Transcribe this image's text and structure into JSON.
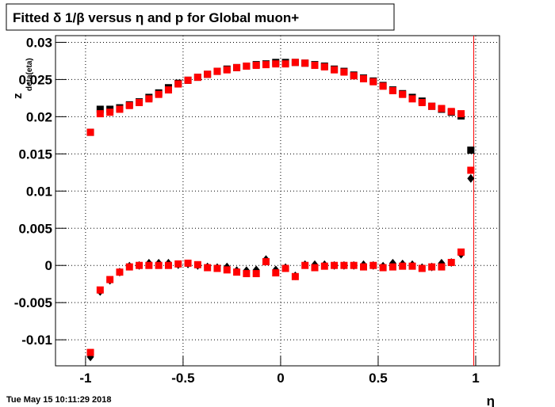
{
  "chart_data": {
    "type": "scatter",
    "title": "Fitted δ 1/β versus η and p for Global muon+",
    "x_label": "η",
    "y_label": "z",
    "y_label_sub": "deta(eta)",
    "timestamp": "Tue May 15 10:11:29 2018",
    "x": [
      -0.975,
      -0.925,
      -0.875,
      -0.825,
      -0.775,
      -0.725,
      -0.675,
      -0.625,
      -0.575,
      -0.525,
      -0.475,
      -0.425,
      -0.375,
      -0.325,
      -0.275,
      -0.225,
      -0.175,
      -0.125,
      -0.075,
      -0.025,
      0.025,
      0.075,
      0.125,
      0.175,
      0.225,
      0.275,
      0.325,
      0.375,
      0.425,
      0.475,
      0.525,
      0.575,
      0.625,
      0.675,
      0.725,
      0.775,
      0.825,
      0.875,
      0.925,
      0.975
    ],
    "series": [
      {
        "color": "#000000",
        "marker": "square",
        "values": [
          0.0179,
          0.021,
          0.021,
          0.0212,
          0.0216,
          0.022,
          0.0226,
          0.0232,
          0.0239,
          0.0245,
          0.0249,
          0.0253,
          0.0257,
          0.0261,
          0.0264,
          0.0266,
          0.0268,
          0.027,
          0.0271,
          0.0273,
          0.0273,
          0.0273,
          0.0272,
          0.027,
          0.0268,
          0.0264,
          0.0261,
          0.0256,
          0.0252,
          0.0248,
          0.0242,
          0.0236,
          0.0231,
          0.0226,
          0.0221,
          0.0214,
          0.021,
          0.0206,
          0.0201,
          0.0155
        ]
      },
      {
        "color": "#ff0000",
        "marker": "square",
        "values": [
          0.0179,
          0.0204,
          0.0206,
          0.021,
          0.0215,
          0.0219,
          0.0224,
          0.023,
          0.0236,
          0.0244,
          0.0249,
          0.0253,
          0.0257,
          0.0261,
          0.0263,
          0.0266,
          0.0268,
          0.0269,
          0.027,
          0.0271,
          0.0271,
          0.0273,
          0.0272,
          0.0269,
          0.0267,
          0.0263,
          0.026,
          0.0255,
          0.0251,
          0.0247,
          0.0241,
          0.0235,
          0.023,
          0.0224,
          0.0219,
          0.0214,
          0.0211,
          0.0207,
          0.0204,
          0.0128
        ]
      },
      {
        "color": "#000000",
        "marker": "diamond",
        "values": [
          -0.0123,
          -0.0035,
          -0.002,
          -0.0009,
          -0.0001,
          0.0,
          0.0003,
          0.0003,
          0.0003,
          0.0001,
          0.0002,
          0.0,
          -0.0002,
          -0.0003,
          -0.0002,
          -0.0007,
          -0.0007,
          -0.0006,
          0.0008,
          -0.0006,
          -0.0003,
          -0.0014,
          0.0001,
          0.0001,
          0.0001,
          0.0,
          0.0,
          0.0,
          0.0001,
          0.0,
          -0.0001,
          0.0003,
          0.0002,
          0.0001,
          -0.0003,
          -0.0002,
          0.0003,
          0.0004,
          0.0015,
          0.0117
        ]
      },
      {
        "color": "#ff0000",
        "marker": "square",
        "values": [
          -0.0117,
          -0.0033,
          -0.0019,
          -0.0009,
          -0.0002,
          0.0,
          0.0,
          0.0,
          0.0,
          0.0002,
          0.0003,
          0.0001,
          -0.0003,
          -0.0004,
          -0.0006,
          -0.0009,
          -0.0011,
          -0.0011,
          0.0005,
          -0.001,
          -0.0004,
          -0.0015,
          0.0,
          -0.0003,
          -0.0001,
          0.0,
          0.0,
          0.0,
          -0.0002,
          0.0,
          -0.0003,
          -0.0002,
          -0.0001,
          -0.0001,
          -0.0004,
          -0.0002,
          -0.0002,
          0.0004,
          0.0018,
          null
        ]
      }
    ],
    "marker_line": 0.99,
    "marker_line_color": "#ff0000",
    "xlim": [
      -1.154,
      1.122
    ],
    "xticks": [
      -1,
      -0.5,
      0,
      0.5,
      1
    ],
    "ylim": [
      -0.0135,
      0.0309
    ],
    "yticks": [
      -0.01,
      -0.005,
      0,
      0.005,
      0.01,
      0.015,
      0.02,
      0.025,
      0.03
    ],
    "grid": true
  }
}
